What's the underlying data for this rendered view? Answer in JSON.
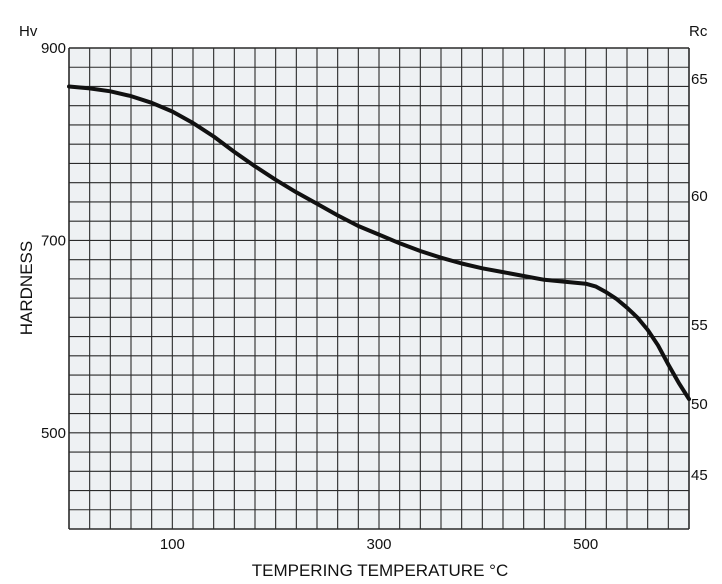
{
  "chart_data": {
    "type": "line",
    "title": "",
    "xlabel": "TEMPERING TEMPERATURE °C",
    "ylabel": "HARDNESS",
    "y_unit_left": "Hv",
    "y_unit_right": "Rc",
    "xlim": [
      0,
      600
    ],
    "ylim": [
      400,
      900
    ],
    "x_ticks": [
      100,
      300,
      500
    ],
    "y_ticks_left": [
      500,
      700,
      900
    ],
    "y_right_ticks": [
      {
        "label": "45",
        "hv": 456
      },
      {
        "label": "50",
        "hv": 530
      },
      {
        "label": "55",
        "hv": 612
      },
      {
        "label": "60",
        "hv": 746
      },
      {
        "label": "65",
        "hv": 868
      }
    ],
    "grid": true,
    "grid_color": "#2a2a2a",
    "background_color": "#eef1f3",
    "line_color": "#111111",
    "series": [
      {
        "x": [
          0,
          20,
          40,
          60,
          80,
          100,
          120,
          140,
          160,
          180,
          200,
          220,
          240,
          260,
          280,
          300,
          320,
          340,
          360,
          380,
          400,
          420,
          440,
          460,
          480,
          500,
          510,
          520,
          530,
          540,
          550,
          560,
          570,
          580,
          590,
          600
        ],
        "values": [
          860,
          858,
          855,
          850,
          843,
          834,
          822,
          808,
          792,
          777,
          763,
          750,
          738,
          726,
          715,
          706,
          697,
          689,
          682,
          676,
          671,
          667,
          663,
          659,
          657,
          655,
          652,
          646,
          639,
          630,
          620,
          607,
          591,
          571,
          552,
          535
        ]
      }
    ]
  }
}
